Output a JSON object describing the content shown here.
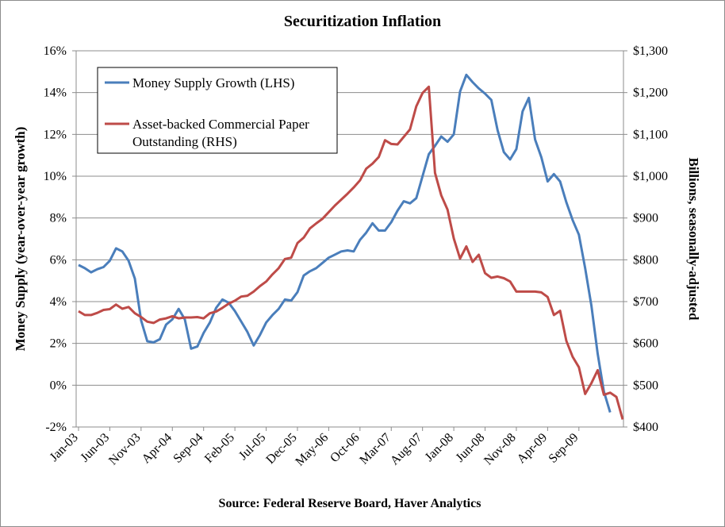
{
  "chart_data": {
    "type": "line",
    "title": "Securitization  Inflation",
    "source": "Source:  Federal Reserve Board, Haver Analytics",
    "ylabel_left": "Money Supply (year-over-year growth)",
    "ylabel_right": "Billions, seasonally-adjusted",
    "ylim_left": [
      -2,
      16
    ],
    "ylim_right": [
      400,
      1300
    ],
    "grid": true,
    "legend_position": "top-left",
    "left_ticks": [
      "-2%",
      "0%",
      "2%",
      "4%",
      "6%",
      "8%",
      "10%",
      "12%",
      "14%",
      "16%"
    ],
    "right_ticks": [
      "$400",
      "$500",
      "$600",
      "$700",
      "$800",
      "$900",
      "$1,000",
      "$1,100",
      "$1,200",
      "$1,300"
    ],
    "x_tick_labels": [
      "Jan-03",
      "Jun-03",
      "Nov-03",
      "Apr-04",
      "Sep-04",
      "Feb-05",
      "Jul-05",
      "Dec-05",
      "May-06",
      "Oct-06",
      "Mar-07",
      "Aug-07",
      "Jan-08",
      "Jun-08",
      "Nov-08",
      "Apr-09",
      "Sep-09"
    ],
    "months_start": "Jan-03",
    "series": [
      {
        "name": "Money Supply Growth (LHS)",
        "axis": "left",
        "color": "#4a7ebb",
        "values": [
          5.75,
          5.6,
          5.4,
          5.55,
          5.65,
          5.95,
          6.55,
          6.4,
          5.95,
          5.1,
          3.1,
          2.1,
          2.05,
          2.2,
          2.9,
          3.15,
          3.65,
          3.15,
          1.75,
          1.85,
          2.5,
          3.0,
          3.7,
          4.1,
          3.95,
          3.55,
          3.05,
          2.55,
          1.9,
          2.4,
          3.0,
          3.35,
          3.65,
          4.1,
          4.05,
          4.45,
          5.25,
          5.45,
          5.6,
          5.85,
          6.1,
          6.25,
          6.4,
          6.45,
          6.4,
          6.95,
          7.3,
          7.75,
          7.4,
          7.4,
          7.8,
          8.35,
          8.8,
          8.7,
          8.95,
          10.0,
          11.05,
          11.45,
          11.9,
          11.65,
          12.0,
          14.05,
          14.85,
          14.5,
          14.2,
          13.95,
          13.65,
          12.2,
          11.15,
          10.8,
          11.3,
          13.1,
          13.75,
          11.75,
          10.9,
          9.75,
          10.1,
          9.75,
          8.75,
          7.9,
          7.2,
          5.6,
          3.8,
          1.5,
          -0.3,
          -1.3
        ]
      },
      {
        "name": "Asset-backed Commercial Paper Outstanding (RHS)",
        "axis": "right",
        "color": "#be4b48",
        "values": [
          677,
          668,
          668,
          673,
          680,
          682,
          693,
          683,
          687,
          672,
          663,
          652,
          649,
          657,
          660,
          665,
          660,
          662,
          662,
          663,
          660,
          672,
          676,
          685,
          695,
          702,
          712,
          714,
          724,
          737,
          748,
          765,
          780,
          802,
          805,
          840,
          853,
          875,
          887,
          898,
          914,
          930,
          944,
          958,
          973,
          990,
          1018,
          1030,
          1046,
          1086,
          1077,
          1076,
          1094,
          1112,
          1167,
          1199,
          1214,
          1008,
          954,
          920,
          851,
          803,
          832,
          795,
          812,
          768,
          757,
          760,
          756,
          748,
          724,
          724,
          724,
          724,
          722,
          711,
          668,
          678,
          606,
          568,
          543,
          479,
          505,
          536,
          477,
          482,
          472,
          418
        ]
      }
    ]
  }
}
